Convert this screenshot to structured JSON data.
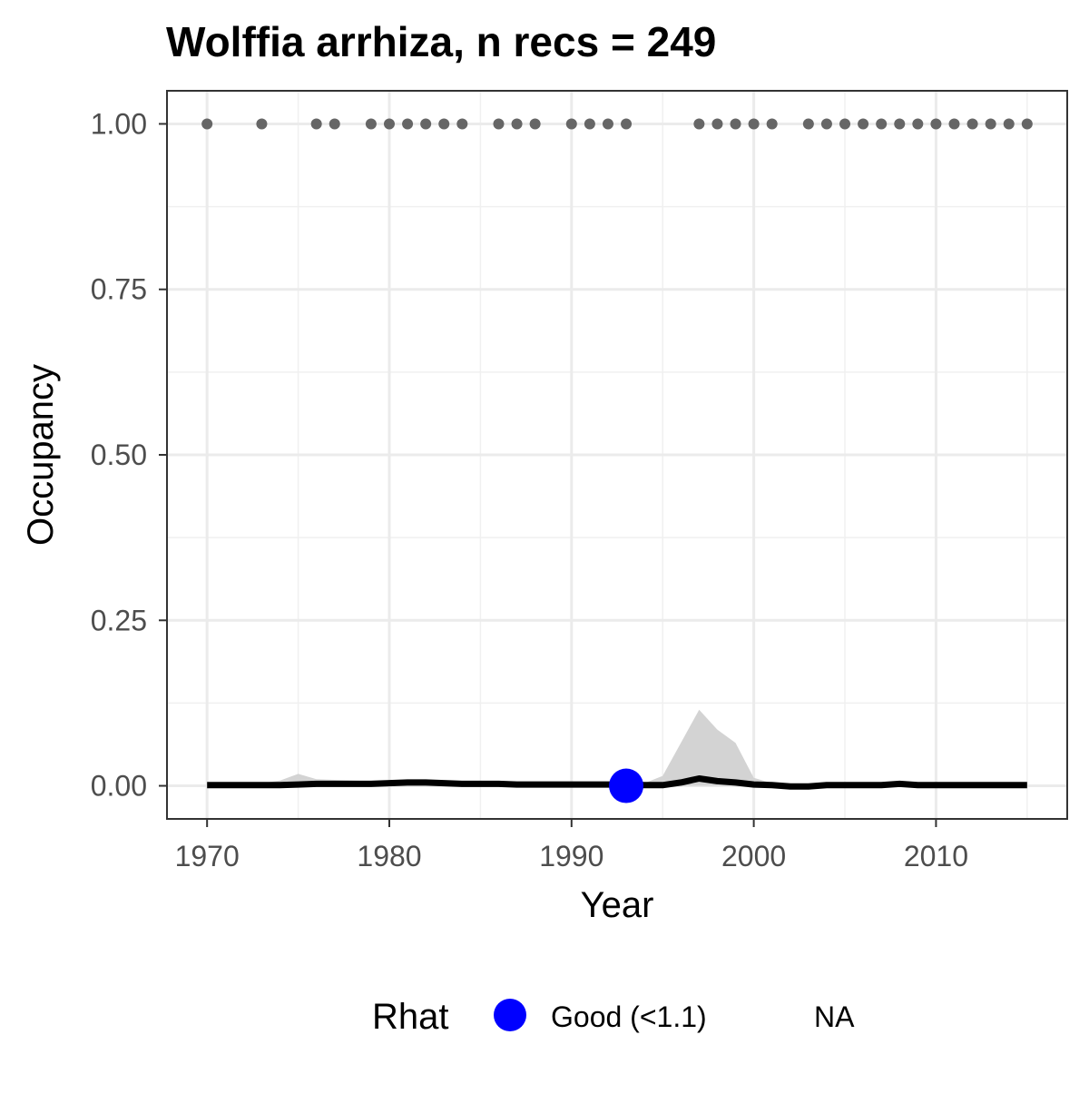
{
  "chart_data": {
    "type": "line",
    "title": "Wolffia arrhiza, n recs = 249",
    "xlabel": "Year",
    "ylabel": "Occupancy",
    "xlim": [
      1967.8,
      2017.2
    ],
    "ylim": [
      -0.05,
      1.05
    ],
    "x_ticks": [
      1970,
      1980,
      1990,
      2000,
      2010
    ],
    "y_ticks": [
      0.0,
      0.25,
      0.5,
      0.75,
      1.0
    ],
    "y_tick_labels": [
      "0.00",
      "0.25",
      "0.50",
      "0.75",
      "1.00"
    ],
    "grid": true,
    "series": [
      {
        "role": "mean",
        "color": "#000000",
        "x": [
          1970,
          1971,
          1972,
          1973,
          1974,
          1975,
          1976,
          1977,
          1978,
          1979,
          1980,
          1981,
          1982,
          1983,
          1984,
          1985,
          1986,
          1987,
          1988,
          1989,
          1990,
          1991,
          1992,
          1993,
          1994,
          1995,
          1996,
          1997,
          1998,
          1999,
          2000,
          2001,
          2002,
          2003,
          2004,
          2005,
          2006,
          2007,
          2008,
          2009,
          2010,
          2011,
          2012,
          2013,
          2014,
          2015
        ],
        "y": [
          0.001,
          0.001,
          0.001,
          0.001,
          0.001,
          0.002,
          0.003,
          0.003,
          0.003,
          0.003,
          0.004,
          0.005,
          0.005,
          0.004,
          0.003,
          0.003,
          0.003,
          0.002,
          0.002,
          0.002,
          0.002,
          0.002,
          0.002,
          0.002,
          0.001,
          0.001,
          0.005,
          0.011,
          0.007,
          0.005,
          0.002,
          0.001,
          -0.001,
          -0.001,
          0.001,
          0.001,
          0.001,
          0.001,
          0.003,
          0.001,
          0.001,
          0.001,
          0.001,
          0.001,
          0.001,
          0.001
        ]
      }
    ],
    "ci_ribbon": {
      "color": "#d3d3d3",
      "x": [
        1970,
        1971,
        1972,
        1973,
        1974,
        1975,
        1976,
        1977,
        1978,
        1979,
        1980,
        1981,
        1982,
        1983,
        1984,
        1985,
        1986,
        1987,
        1988,
        1989,
        1990,
        1991,
        1992,
        1993,
        1994,
        1995,
        1996,
        1997,
        1998,
        1999,
        2000,
        2001,
        2002,
        2003,
        2004,
        2005,
        2006,
        2007,
        2008,
        2009,
        2010,
        2011,
        2012,
        2013,
        2014,
        2015
      ],
      "upper": [
        0.002,
        0.002,
        0.003,
        0.004,
        0.008,
        0.018,
        0.01,
        0.009,
        0.008,
        0.007,
        0.007,
        0.007,
        0.007,
        0.006,
        0.006,
        0.005,
        0.005,
        0.005,
        0.004,
        0.004,
        0.004,
        0.004,
        0.004,
        0.004,
        0.004,
        0.015,
        0.065,
        0.115,
        0.085,
        0.065,
        0.012,
        0.004,
        0.003,
        0.003,
        0.003,
        0.003,
        0.003,
        0.003,
        0.004,
        0.003,
        0.003,
        0.003,
        0.003,
        0.003,
        0.003,
        0.003
      ],
      "lower": [
        0.0,
        0.0,
        0.0,
        0.0,
        0.0,
        0.0,
        0.0,
        0.0,
        0.0,
        0.0,
        0.0,
        0.0,
        0.0,
        0.0,
        0.0,
        0.0,
        0.0,
        0.0,
        0.0,
        0.0,
        0.0,
        0.0,
        0.0,
        0.0,
        0.0,
        0.0,
        0.0,
        0.0,
        0.0,
        0.0,
        0.0,
        0.0,
        -0.002,
        -0.002,
        0.0,
        0.0,
        0.0,
        0.0,
        0.0,
        0.0,
        0.0,
        0.0,
        0.0,
        0.0,
        0.0,
        0.0
      ]
    },
    "record_years": {
      "color": "#666666",
      "y": 1.0,
      "x": [
        1970,
        1973,
        1976,
        1977,
        1979,
        1980,
        1981,
        1982,
        1983,
        1984,
        1986,
        1987,
        1988,
        1990,
        1991,
        1992,
        1993,
        1997,
        1998,
        1999,
        2000,
        2001,
        2003,
        2004,
        2005,
        2006,
        2007,
        2008,
        2009,
        2010,
        2011,
        2012,
        2013,
        2014,
        2015
      ]
    },
    "rhat_points": [
      {
        "x": 1993,
        "y": 0.0,
        "category": "Good (<1.1)",
        "color": "#0000ff"
      }
    ],
    "legend": {
      "title": "Rhat",
      "position": "bottom",
      "entries": [
        {
          "label": "Good (<1.1)",
          "color": "#0000ff",
          "marker": "circle"
        },
        {
          "label": "NA",
          "marker": "none"
        }
      ]
    }
  }
}
